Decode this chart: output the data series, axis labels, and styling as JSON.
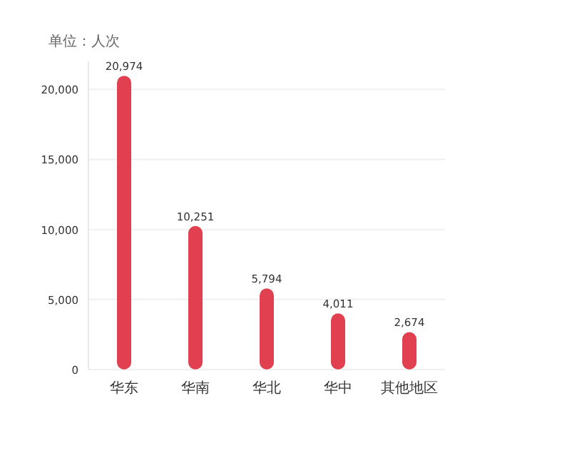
{
  "chart_data": {
    "type": "bar",
    "ylabel": "单位：人次",
    "categories": [
      "华东",
      "华南",
      "华北",
      "华中",
      "其他地区"
    ],
    "values": [
      20974,
      10251,
      5794,
      4011,
      2674
    ],
    "value_labels": [
      "20,974",
      "10,251",
      "5,794",
      "4,011",
      "2,674"
    ],
    "color": "#e0404f",
    "ylim": [
      0,
      22000
    ],
    "yticks": [
      {
        "value": 0,
        "label": "0"
      },
      {
        "value": 5000,
        "label": "5,000"
      },
      {
        "value": 10000,
        "label": "10,000"
      },
      {
        "value": 15000,
        "label": "15,000"
      },
      {
        "value": 20000,
        "label": "20,000"
      }
    ],
    "grid": "y"
  }
}
